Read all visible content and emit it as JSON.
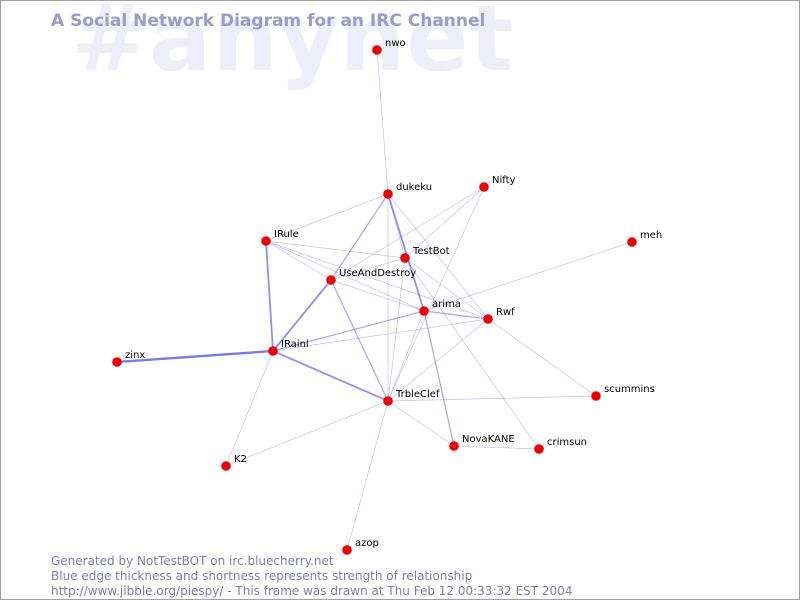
{
  "watermark": "#anynet",
  "title": "A Social Network Diagram for an IRC Channel",
  "footer": {
    "line1": "Generated by NotTestBOT on irc.bluecherry.net",
    "line2": "Blue edge thickness and shortness represents strength of relationship",
    "line3": "http://www.jibble.org/piespy/ - This frame was drawn at Thu Feb 12 00:33:32 EST 2004"
  },
  "colors": {
    "node": "#ee0000",
    "edge": "#3333dd",
    "title": "#9a9acc",
    "watermark": "#eeeefa",
    "footer": "#7c7cae"
  },
  "nodes": [
    {
      "id": "nwo",
      "label": "nwo"
    },
    {
      "id": "dukeku",
      "label": "dukeku"
    },
    {
      "id": "nifty",
      "label": "Nifty"
    },
    {
      "id": "irule",
      "label": "IRule"
    },
    {
      "id": "testbot",
      "label": "TestBot"
    },
    {
      "id": "meh",
      "label": "meh"
    },
    {
      "id": "useanddestroy",
      "label": "UseAndDestroy"
    },
    {
      "id": "arima",
      "label": "arima"
    },
    {
      "id": "rwf",
      "label": "Rwf"
    },
    {
      "id": "irainl",
      "label": "IRainl"
    },
    {
      "id": "zinx",
      "label": "zinx"
    },
    {
      "id": "trbleclef",
      "label": "TrbleClef"
    },
    {
      "id": "scummins",
      "label": "scummins"
    },
    {
      "id": "novakane",
      "label": "NovaKANE"
    },
    {
      "id": "crimsun",
      "label": "crimsun"
    },
    {
      "id": "k2",
      "label": "K2"
    },
    {
      "id": "azop",
      "label": "azop"
    }
  ],
  "edges": [
    {
      "source": "nwo",
      "target": "dukeku",
      "weight": 1
    },
    {
      "source": "dukeku",
      "target": "irule",
      "weight": 1
    },
    {
      "source": "dukeku",
      "target": "useanddestroy",
      "weight": 2
    },
    {
      "source": "dukeku",
      "target": "testbot",
      "weight": 1
    },
    {
      "source": "dukeku",
      "target": "arima",
      "weight": 3
    },
    {
      "source": "dukeku",
      "target": "rwf",
      "weight": 1
    },
    {
      "source": "dukeku",
      "target": "trbleclef",
      "weight": 1
    },
    {
      "source": "nifty",
      "target": "useanddestroy",
      "weight": 1
    },
    {
      "source": "nifty",
      "target": "testbot",
      "weight": 1
    },
    {
      "source": "nifty",
      "target": "trbleclef",
      "weight": 1
    },
    {
      "source": "irule",
      "target": "testbot",
      "weight": 1
    },
    {
      "source": "irule",
      "target": "useanddestroy",
      "weight": 1
    },
    {
      "source": "irule",
      "target": "arima",
      "weight": 1
    },
    {
      "source": "irule",
      "target": "rwf",
      "weight": 1
    },
    {
      "source": "irule",
      "target": "irainl",
      "weight": 3
    },
    {
      "source": "testbot",
      "target": "useanddestroy",
      "weight": 1
    },
    {
      "source": "testbot",
      "target": "rwf",
      "weight": 1
    },
    {
      "source": "testbot",
      "target": "trbleclef",
      "weight": 1
    },
    {
      "source": "testbot",
      "target": "crimsun",
      "weight": 1
    },
    {
      "source": "meh",
      "target": "arima",
      "weight": 1
    },
    {
      "source": "useanddestroy",
      "target": "irainl",
      "weight": 3
    },
    {
      "source": "useanddestroy",
      "target": "trbleclef",
      "weight": 2
    },
    {
      "source": "useanddestroy",
      "target": "arima",
      "weight": 1
    },
    {
      "source": "arima",
      "target": "irainl",
      "weight": 2
    },
    {
      "source": "arima",
      "target": "rwf",
      "weight": 2
    },
    {
      "source": "arima",
      "target": "trbleclef",
      "weight": 1
    },
    {
      "source": "arima",
      "target": "novakane",
      "weight": 2
    },
    {
      "source": "rwf",
      "target": "irainl",
      "weight": 1
    },
    {
      "source": "rwf",
      "target": "trbleclef",
      "weight": 1
    },
    {
      "source": "rwf",
      "target": "scummins",
      "weight": 1
    },
    {
      "source": "irainl",
      "target": "zinx",
      "weight": 4
    },
    {
      "source": "irainl",
      "target": "trbleclef",
      "weight": 3
    },
    {
      "source": "irainl",
      "target": "k2",
      "weight": 1
    },
    {
      "source": "trbleclef",
      "target": "scummins",
      "weight": 1
    },
    {
      "source": "trbleclef",
      "target": "novakane",
      "weight": 1
    },
    {
      "source": "trbleclef",
      "target": "k2",
      "weight": 1
    },
    {
      "source": "trbleclef",
      "target": "azop",
      "weight": 1
    },
    {
      "source": "novakane",
      "target": "crimsun",
      "weight": 1
    }
  ]
}
